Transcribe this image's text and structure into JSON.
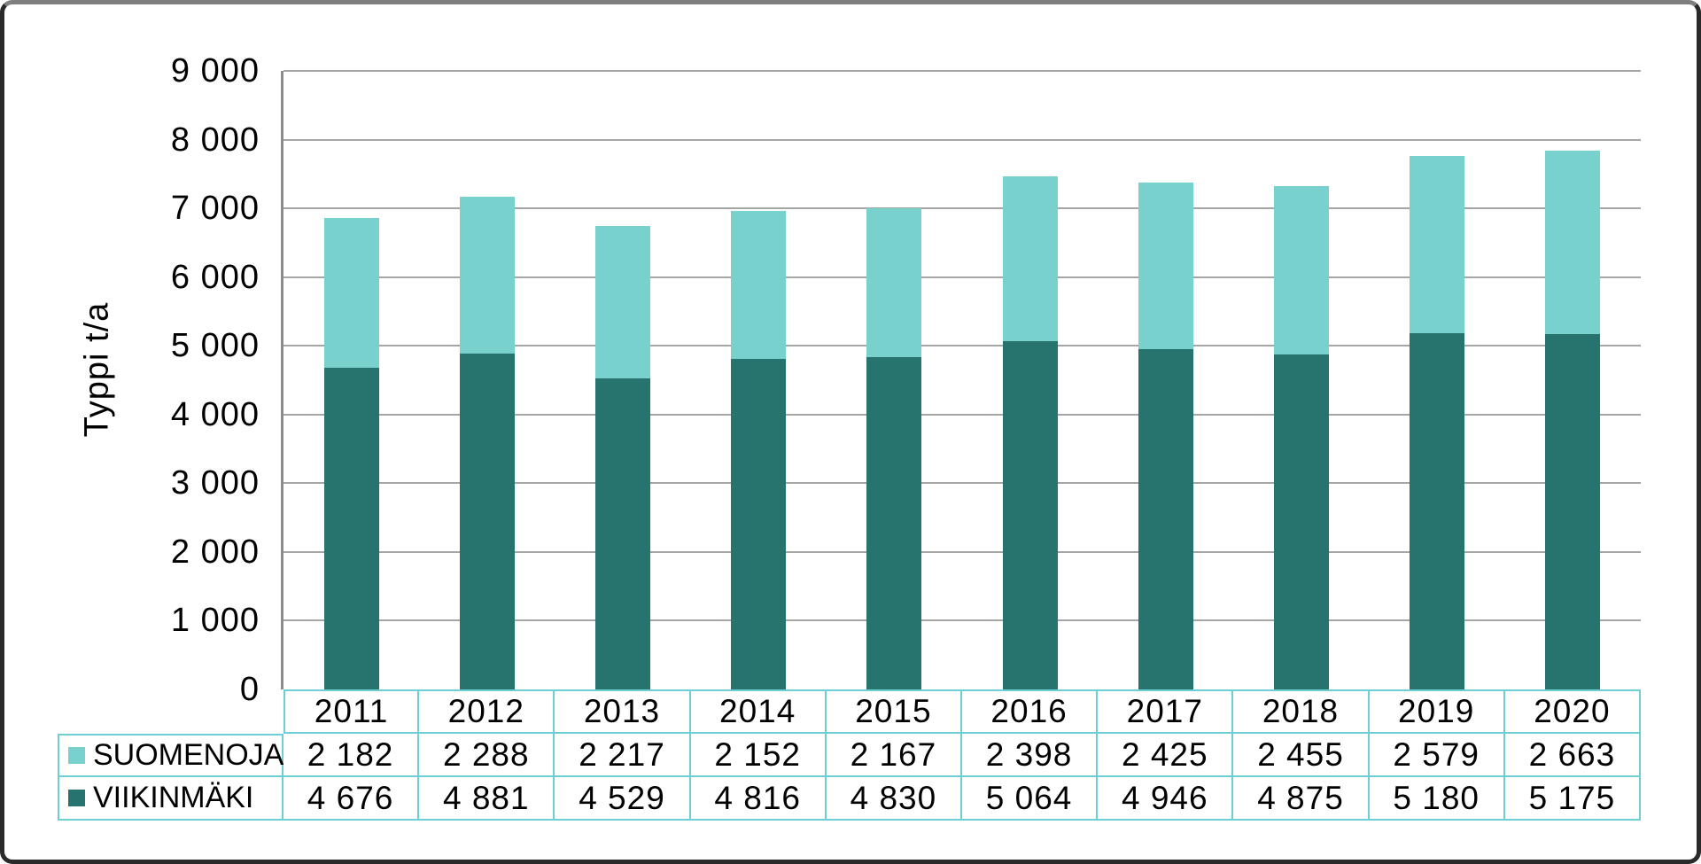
{
  "chart_data": {
    "type": "bar",
    "stacked": true,
    "title": "",
    "ylabel": "Typpi t/a",
    "xlabel": "",
    "ylim": [
      0,
      9000
    ],
    "ytick_step": 1000,
    "ytick_labels": [
      "0",
      "1 000",
      "2 000",
      "3 000",
      "4 000",
      "5 000",
      "6 000",
      "7 000",
      "8 000",
      "9 000"
    ],
    "grid": true,
    "legend_position": "data-table-left",
    "categories": [
      "2011",
      "2012",
      "2013",
      "2014",
      "2015",
      "2016",
      "2017",
      "2018",
      "2019",
      "2020"
    ],
    "series": [
      {
        "name": "SUOMENOJA",
        "stack_order": "top",
        "color": "#79D1CE",
        "values": [
          2182,
          2288,
          2217,
          2152,
          2167,
          2398,
          2425,
          2455,
          2579,
          2663
        ],
        "labels": [
          "2 182",
          "2 288",
          "2 217",
          "2 152",
          "2 167",
          "2 398",
          "2 425",
          "2 455",
          "2 579",
          "2 663"
        ]
      },
      {
        "name": "VIIKINMÄKI",
        "stack_order": "bottom",
        "color": "#27746F",
        "values": [
          4676,
          4881,
          4529,
          4816,
          4830,
          5064,
          4946,
          4875,
          5180,
          5175
        ],
        "labels": [
          "4 676",
          "4 881",
          "4 529",
          "4 816",
          "4 830",
          "5 064",
          "4 946",
          "4 875",
          "5 180",
          "5 175"
        ]
      }
    ]
  },
  "colors": {
    "suomenoja": "#79D1CE",
    "viikinmaki": "#27746F",
    "table_border": "#6DCED4",
    "gridline": "#A6A6A6",
    "axis_line": "#8C8C8C",
    "text": "#000000",
    "background": "#FFFFFF",
    "frame_border": "#2A2A2A"
  }
}
